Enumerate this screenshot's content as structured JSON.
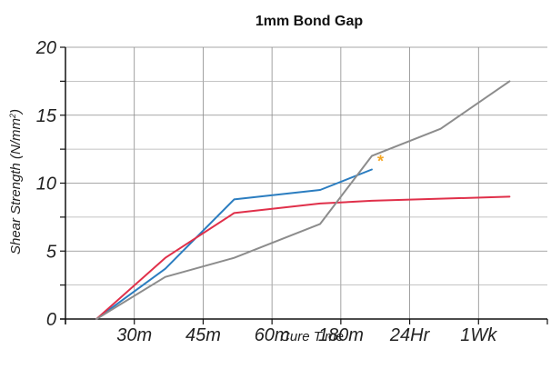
{
  "chart_data": {
    "type": "line",
    "title": "1mm Bond Gap",
    "xlabel": "Cure Time",
    "ylabel": "Shear Strength (N/mm²)",
    "ylabel_main": "Shear Strength (N/mm",
    "ylabel_sup": "2",
    "ylabel_end": ")",
    "categories": [
      "30m",
      "45m",
      "60m",
      "180m",
      "24Hr",
      "1Wk"
    ],
    "ylim": [
      0,
      20
    ],
    "yticks": [
      "0",
      "5",
      "10",
      "15",
      "20"
    ],
    "grid": true,
    "legend": "none",
    "annotation": {
      "text": "*",
      "x": 4.53,
      "y": 11.6,
      "color": "#f5a623"
    },
    "series": [
      {
        "color": "#2b7dc0",
        "x": [
          0.45,
          1.45,
          2.45,
          3.7,
          4.45
        ],
        "y": [
          0,
          3.7,
          8.8,
          9.5,
          11.0
        ]
      },
      {
        "color": "#e0304a",
        "x": [
          0.45,
          1.45,
          2.45,
          3.7,
          4.45,
          6.45
        ],
        "y": [
          0,
          4.5,
          7.8,
          8.5,
          8.7,
          9.0
        ]
      },
      {
        "color": "#8c8c8c",
        "x": [
          0.45,
          1.45,
          2.45,
          3.7,
          4.45,
          5.45,
          6.45
        ],
        "y": [
          0,
          3.1,
          4.5,
          7.0,
          12.0,
          14.0,
          17.5
        ]
      }
    ]
  }
}
